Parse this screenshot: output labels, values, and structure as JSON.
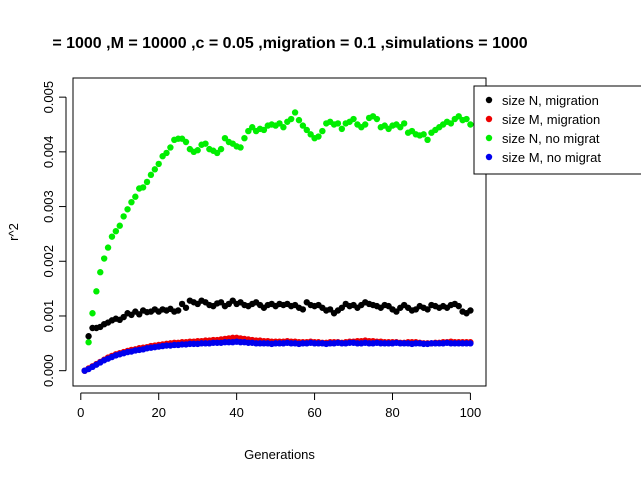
{
  "chart_data": {
    "type": "scatter",
    "title": "= 1000 ,M = 10000 ,c = 0.05 ,migration = 0.1 ,simulations = 1000",
    "xlabel": "Generations",
    "ylabel": "r^2",
    "xlim": [
      -2,
      104
    ],
    "ylim": [
      -0.00028,
      0.00535
    ],
    "xticks": [
      0,
      20,
      40,
      60,
      80,
      100
    ],
    "xtick_labels": [
      "0",
      "20",
      "40",
      "60",
      "80",
      "100"
    ],
    "yticks": [
      0,
      0.001,
      0.002,
      0.003,
      0.004,
      0.005
    ],
    "ytick_labels": [
      "0.000",
      "0.001",
      "0.002",
      "0.003",
      "0.004",
      "0.005"
    ],
    "grid": false,
    "legend_position": "top-right",
    "series": [
      {
        "name": "size N, no migrat",
        "color": "#00ee00",
        "x": [
          2,
          3,
          4,
          5,
          6,
          7,
          8,
          9,
          10,
          11,
          12,
          13,
          14,
          15,
          16,
          17,
          18,
          19,
          20,
          21,
          22,
          23,
          24,
          25,
          26,
          27,
          28,
          29,
          30,
          31,
          32,
          33,
          34,
          35,
          36,
          37,
          38,
          39,
          40,
          41,
          42,
          43,
          44,
          45,
          46,
          47,
          48,
          49,
          50,
          51,
          52,
          53,
          54,
          55,
          56,
          57,
          58,
          59,
          60,
          61,
          62,
          63,
          64,
          65,
          66,
          67,
          68,
          69,
          70,
          71,
          72,
          73,
          74,
          75,
          76,
          77,
          78,
          79,
          80,
          81,
          82,
          83,
          84,
          85,
          86,
          87,
          88,
          89,
          90,
          91,
          92,
          93,
          94,
          95,
          96,
          97,
          98,
          99,
          100
        ],
        "y": [
          0.00052,
          0.00105,
          0.00145,
          0.0018,
          0.00205,
          0.00225,
          0.00245,
          0.00255,
          0.00265,
          0.00282,
          0.00295,
          0.00308,
          0.00318,
          0.00333,
          0.00335,
          0.00345,
          0.00358,
          0.00368,
          0.00378,
          0.00392,
          0.00398,
          0.00408,
          0.00422,
          0.00424,
          0.00424,
          0.00418,
          0.00405,
          0.004,
          0.00403,
          0.00413,
          0.00415,
          0.00405,
          0.00402,
          0.00398,
          0.00405,
          0.00425,
          0.00418,
          0.00415,
          0.0041,
          0.00408,
          0.00425,
          0.00438,
          0.00445,
          0.00438,
          0.00442,
          0.0044,
          0.00448,
          0.0045,
          0.00448,
          0.00452,
          0.00445,
          0.00455,
          0.0046,
          0.00472,
          0.00458,
          0.00448,
          0.0044,
          0.00432,
          0.00425,
          0.00428,
          0.00438,
          0.00452,
          0.00455,
          0.0045,
          0.00452,
          0.00442,
          0.00452,
          0.00455,
          0.0046,
          0.0045,
          0.00445,
          0.0045,
          0.00462,
          0.00465,
          0.0046,
          0.00445,
          0.00448,
          0.00442,
          0.00448,
          0.0045,
          0.00445,
          0.00452,
          0.00435,
          0.00438,
          0.00432,
          0.0043,
          0.00432,
          0.00422,
          0.00435,
          0.0044,
          0.00445,
          0.0045,
          0.00455,
          0.00452,
          0.0046,
          0.00465,
          0.00458,
          0.0046,
          0.0045
        ]
      },
      {
        "name": "size N, migration",
        "color": "#000000",
        "x": [
          2,
          3,
          4,
          5,
          6,
          7,
          8,
          9,
          10,
          11,
          12,
          13,
          14,
          15,
          16,
          17,
          18,
          19,
          20,
          21,
          22,
          23,
          24,
          25,
          26,
          27,
          28,
          29,
          30,
          31,
          32,
          33,
          34,
          35,
          36,
          37,
          38,
          39,
          40,
          41,
          42,
          43,
          44,
          45,
          46,
          47,
          48,
          49,
          50,
          51,
          52,
          53,
          54,
          55,
          56,
          57,
          58,
          59,
          60,
          61,
          62,
          63,
          64,
          65,
          66,
          67,
          68,
          69,
          70,
          71,
          72,
          73,
          74,
          75,
          76,
          77,
          78,
          79,
          80,
          81,
          82,
          83,
          84,
          85,
          86,
          87,
          88,
          89,
          90,
          91,
          92,
          93,
          94,
          95,
          96,
          97,
          98,
          99,
          100
        ],
        "y": [
          0.00063,
          0.00078,
          0.00078,
          0.0008,
          0.00085,
          0.00088,
          0.00092,
          0.00095,
          0.00093,
          0.00098,
          0.00105,
          0.00102,
          0.00108,
          0.00103,
          0.0011,
          0.00107,
          0.00108,
          0.00112,
          0.00108,
          0.00112,
          0.0011,
          0.00113,
          0.00108,
          0.0011,
          0.00122,
          0.00115,
          0.00128,
          0.00125,
          0.00122,
          0.00128,
          0.00125,
          0.0012,
          0.00118,
          0.00123,
          0.00125,
          0.00118,
          0.00122,
          0.00128,
          0.00122,
          0.00125,
          0.0012,
          0.00118,
          0.00122,
          0.00125,
          0.0012,
          0.00115,
          0.0012,
          0.00122,
          0.00118,
          0.00122,
          0.0012,
          0.00122,
          0.00118,
          0.0012,
          0.00115,
          0.00112,
          0.00125,
          0.0012,
          0.00118,
          0.0012,
          0.00115,
          0.0011,
          0.00112,
          0.00105,
          0.0011,
          0.00115,
          0.00122,
          0.00118,
          0.0012,
          0.00115,
          0.0012,
          0.00125,
          0.00122,
          0.0012,
          0.00118,
          0.00115,
          0.0012,
          0.00118,
          0.00112,
          0.00108,
          0.00115,
          0.0012,
          0.00115,
          0.0011,
          0.00112,
          0.00118,
          0.00115,
          0.00112,
          0.0012,
          0.00118,
          0.00115,
          0.00118,
          0.00115,
          0.0012,
          0.00122,
          0.00118,
          0.00108,
          0.00105,
          0.0011
        ]
      },
      {
        "name": "size M, migration",
        "color": "#ee0000",
        "x": [
          1,
          2,
          3,
          4,
          5,
          6,
          7,
          8,
          9,
          10,
          11,
          12,
          13,
          14,
          15,
          16,
          17,
          18,
          19,
          20,
          21,
          22,
          23,
          24,
          25,
          26,
          27,
          28,
          29,
          30,
          31,
          32,
          33,
          34,
          35,
          36,
          37,
          38,
          39,
          40,
          41,
          42,
          43,
          44,
          45,
          46,
          47,
          48,
          49,
          50,
          51,
          52,
          53,
          54,
          55,
          56,
          57,
          58,
          59,
          60,
          61,
          62,
          63,
          64,
          65,
          66,
          67,
          68,
          69,
          70,
          71,
          72,
          73,
          74,
          75,
          76,
          77,
          78,
          79,
          80,
          81,
          82,
          83,
          84,
          85,
          86,
          87,
          88,
          89,
          90,
          91,
          92,
          93,
          94,
          95,
          96,
          97,
          98,
          99,
          100
        ],
        "y": [
          0.0,
          4e-05,
          8e-05,
          0.00012,
          0.00016,
          0.0002,
          0.00024,
          0.00027,
          0.0003,
          0.00032,
          0.00034,
          0.00036,
          0.00038,
          0.00039,
          0.00041,
          0.00042,
          0.00043,
          0.00045,
          0.00046,
          0.00047,
          0.00048,
          0.00049,
          0.0005,
          0.00051,
          0.00051,
          0.00052,
          0.00052,
          0.00053,
          0.00053,
          0.00054,
          0.00054,
          0.00055,
          0.00055,
          0.00056,
          0.00056,
          0.00057,
          0.00058,
          0.00059,
          0.0006,
          0.0006,
          0.00059,
          0.00058,
          0.00057,
          0.00056,
          0.00055,
          0.00055,
          0.00054,
          0.00054,
          0.00053,
          0.00053,
          0.00053,
          0.00053,
          0.00054,
          0.00053,
          0.00053,
          0.00052,
          0.00052,
          0.00052,
          0.00053,
          0.00052,
          0.00052,
          0.00051,
          0.00051,
          0.00052,
          0.00052,
          0.00052,
          0.00051,
          0.00052,
          0.00053,
          0.00053,
          0.00054,
          0.00054,
          0.00055,
          0.00054,
          0.00054,
          0.00053,
          0.00053,
          0.00052,
          0.00052,
          0.00052,
          0.00052,
          0.00051,
          0.00051,
          0.00052,
          0.00052,
          0.00052,
          0.00051,
          0.0005,
          0.0005,
          0.0005,
          0.00051,
          0.00051,
          0.00052,
          0.00052,
          0.00053,
          0.00052,
          0.00052,
          0.00052,
          0.00052,
          0.00052
        ]
      },
      {
        "name": "size M, no migrat",
        "color": "#0000ee",
        "x": [
          1,
          2,
          3,
          4,
          5,
          6,
          7,
          8,
          9,
          10,
          11,
          12,
          13,
          14,
          15,
          16,
          17,
          18,
          19,
          20,
          21,
          22,
          23,
          24,
          25,
          26,
          27,
          28,
          29,
          30,
          31,
          32,
          33,
          34,
          35,
          36,
          37,
          38,
          39,
          40,
          41,
          42,
          43,
          44,
          45,
          46,
          47,
          48,
          49,
          50,
          51,
          52,
          53,
          54,
          55,
          56,
          57,
          58,
          59,
          60,
          61,
          62,
          63,
          64,
          65,
          66,
          67,
          68,
          69,
          70,
          71,
          72,
          73,
          74,
          75,
          76,
          77,
          78,
          79,
          80,
          81,
          82,
          83,
          84,
          85,
          86,
          87,
          88,
          89,
          90,
          91,
          92,
          93,
          94,
          95,
          96,
          97,
          98,
          99,
          100
        ],
        "y": [
          0.0,
          3e-05,
          7e-05,
          0.00011,
          0.00015,
          0.00019,
          0.00022,
          0.00025,
          0.00028,
          0.0003,
          0.00032,
          0.00034,
          0.00035,
          0.00037,
          0.00038,
          0.00039,
          0.00041,
          0.00042,
          0.00043,
          0.00044,
          0.00045,
          0.00046,
          0.00046,
          0.00047,
          0.00047,
          0.00048,
          0.00048,
          0.00049,
          0.00049,
          0.00049,
          0.0005,
          0.0005,
          0.0005,
          0.00051,
          0.00051,
          0.00051,
          0.00052,
          0.00052,
          0.00052,
          0.00053,
          0.00052,
          0.00052,
          0.00051,
          0.00051,
          0.0005,
          0.0005,
          0.0005,
          0.0005,
          0.00049,
          0.0005,
          0.0005,
          0.0005,
          0.00051,
          0.0005,
          0.0005,
          0.00049,
          0.0005,
          0.0005,
          0.00051,
          0.0005,
          0.0005,
          0.0005,
          0.00049,
          0.0005,
          0.0005,
          0.00051,
          0.0005,
          0.0005,
          0.00051,
          0.00051,
          0.0005,
          0.0005,
          0.00051,
          0.0005,
          0.0005,
          0.00051,
          0.0005,
          0.0005,
          0.0005,
          0.0005,
          0.00051,
          0.0005,
          0.0005,
          0.0005,
          0.00049,
          0.0005,
          0.0005,
          0.00049,
          0.00049,
          0.0005,
          0.0005,
          0.0005,
          0.0005,
          0.00051,
          0.0005,
          0.0005,
          0.0005,
          0.0005,
          0.0005,
          0.0005
        ]
      }
    ],
    "legend_order": [
      1,
      2,
      0,
      3
    ]
  }
}
